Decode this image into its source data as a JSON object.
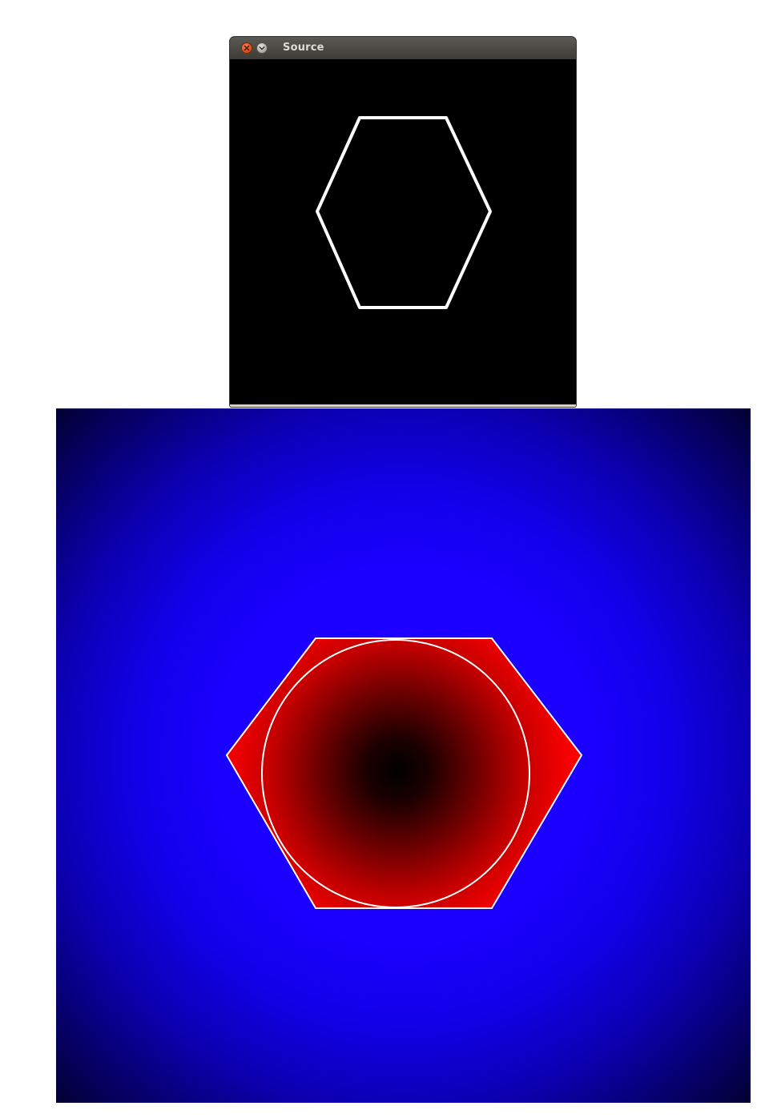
{
  "window": {
    "title": "Source",
    "buttons": {
      "close_icon": "close-icon",
      "minimize_icon": "chevron-down-icon"
    }
  },
  "colors": {
    "titlebar": "#3c3b37",
    "source_background": "#000000",
    "outline": "#ffffff",
    "distance_outside": "#1a00ff",
    "distance_inside": "#ff0000",
    "center": "#000000"
  }
}
